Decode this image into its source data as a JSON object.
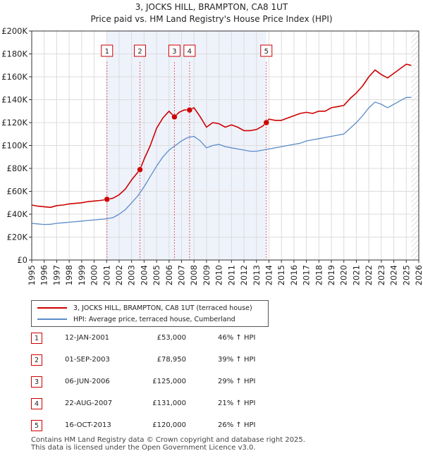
{
  "chart_data": {
    "type": "line",
    "title": "3, JOCKS HILL, BRAMPTON, CA8 1UT",
    "subtitle": "Price paid vs. HM Land Registry's House Price Index (HPI)",
    "xlim": [
      1995,
      2026
    ],
    "ylim": [
      0,
      200000
    ],
    "y_ticks": [
      0,
      20000,
      40000,
      60000,
      80000,
      100000,
      120000,
      140000,
      160000,
      180000,
      200000
    ],
    "y_tick_labels": [
      "£0",
      "£20K",
      "£40K",
      "£60K",
      "£80K",
      "£100K",
      "£120K",
      "£140K",
      "£160K",
      "£180K",
      "£200K"
    ],
    "x_ticks": [
      1995,
      1996,
      1997,
      1998,
      1999,
      2000,
      2001,
      2002,
      2003,
      2004,
      2005,
      2006,
      2007,
      2008,
      2009,
      2010,
      2011,
      2012,
      2013,
      2014,
      2015,
      2016,
      2017,
      2018,
      2019,
      2020,
      2021,
      2022,
      2023,
      2024,
      2025,
      2026
    ],
    "x_tick_labels": [
      "1995",
      "1996",
      "1997",
      "1998",
      "1999",
      "2000",
      "2001",
      "2002",
      "2003",
      "2004",
      "2005",
      "2006",
      "2007",
      "2008",
      "2009",
      "2010",
      "2011",
      "2012",
      "2013",
      "2014",
      "2015",
      "2016",
      "2017",
      "2018",
      "2019",
      "2020",
      "2021",
      "2022",
      "2023",
      "2024",
      "2025",
      "2026"
    ],
    "shaded_region": [
      2001.03,
      2013.79
    ],
    "hatched_from": 2025.4,
    "series": [
      {
        "name": "3, JOCKS HILL, BRAMPTON, CA8 1UT (terraced house)",
        "color": "#cc0000",
        "x": [
          1995.0,
          1995.5,
          1996.0,
          1996.5,
          1997.0,
          1997.5,
          1998.0,
          1998.5,
          1999.0,
          1999.5,
          2000.0,
          2000.5,
          2001.03,
          2001.5,
          2002.0,
          2002.5,
          2003.0,
          2003.67,
          2004.0,
          2004.5,
          2005.0,
          2005.5,
          2006.0,
          2006.43,
          2006.8,
          2007.2,
          2007.64,
          2008.0,
          2008.5,
          2009.0,
          2009.5,
          2010.0,
          2010.5,
          2011.0,
          2011.5,
          2012.0,
          2012.5,
          2013.0,
          2013.5,
          2013.79,
          2014.0,
          2014.5,
          2015.0,
          2015.5,
          2016.0,
          2016.5,
          2017.0,
          2017.5,
          2018.0,
          2018.5,
          2019.0,
          2019.5,
          2020.0,
          2020.5,
          2021.0,
          2021.5,
          2022.0,
          2022.5,
          2023.0,
          2023.5,
          2024.0,
          2024.5,
          2025.0,
          2025.4
        ],
        "values": [
          48000,
          47000,
          46500,
          46000,
          47500,
          48000,
          49000,
          49500,
          50000,
          51000,
          51500,
          52000,
          53000,
          54000,
          57000,
          62000,
          70000,
          78950,
          88000,
          100000,
          115000,
          124000,
          130000,
          125000,
          129000,
          131000,
          131000,
          133000,
          125000,
          116000,
          120000,
          119000,
          116000,
          118000,
          116000,
          113000,
          113000,
          114000,
          117000,
          120000,
          123000,
          122000,
          122000,
          124000,
          126000,
          128000,
          129000,
          128000,
          130000,
          130000,
          133000,
          134000,
          135000,
          141000,
          146000,
          152000,
          160000,
          166000,
          162000,
          159000,
          163000,
          167000,
          171000,
          170000
        ]
      },
      {
        "name": "HPI: Average price, terraced house, Cumberland",
        "color": "#5b8cc8",
        "x": [
          1995.0,
          1995.5,
          1996.0,
          1996.5,
          1997.0,
          1997.5,
          1998.0,
          1998.5,
          1999.0,
          1999.5,
          2000.0,
          2000.5,
          2001.0,
          2001.5,
          2002.0,
          2002.5,
          2003.0,
          2003.5,
          2004.0,
          2004.5,
          2005.0,
          2005.5,
          2006.0,
          2006.5,
          2007.0,
          2007.5,
          2008.0,
          2008.5,
          2009.0,
          2009.5,
          2010.0,
          2010.5,
          2011.0,
          2011.5,
          2012.0,
          2012.5,
          2013.0,
          2013.5,
          2014.0,
          2014.5,
          2015.0,
          2015.5,
          2016.0,
          2016.5,
          2017.0,
          2017.5,
          2018.0,
          2018.5,
          2019.0,
          2019.5,
          2020.0,
          2020.5,
          2021.0,
          2021.5,
          2022.0,
          2022.5,
          2023.0,
          2023.5,
          2024.0,
          2024.5,
          2025.0,
          2025.4
        ],
        "values": [
          32000,
          31500,
          31000,
          31200,
          32000,
          32500,
          33000,
          33500,
          34000,
          34500,
          35000,
          35500,
          36000,
          37000,
          40000,
          44000,
          50000,
          56000,
          64000,
          73000,
          82000,
          90000,
          96000,
          100000,
          104000,
          107000,
          108000,
          104000,
          98000,
          100000,
          101000,
          99000,
          98000,
          97000,
          96000,
          95000,
          95000,
          96000,
          97000,
          98000,
          99000,
          100000,
          101000,
          102000,
          104000,
          105000,
          106000,
          107000,
          108000,
          109000,
          110000,
          115000,
          120000,
          126000,
          133000,
          138000,
          136000,
          133000,
          136000,
          139000,
          142000,
          142000
        ]
      }
    ],
    "transactions": [
      {
        "n": "1",
        "date": "12-JAN-2001",
        "x": 2001.03,
        "price": "£53,000",
        "value": 53000,
        "hpi": "46% ↑ HPI"
      },
      {
        "n": "2",
        "date": "01-SEP-2003",
        "x": 2003.67,
        "price": "£78,950",
        "value": 78950,
        "hpi": "39% ↑ HPI"
      },
      {
        "n": "3",
        "date": "06-JUN-2006",
        "x": 2006.43,
        "price": "£125,000",
        "value": 125000,
        "hpi": "29% ↑ HPI"
      },
      {
        "n": "4",
        "date": "22-AUG-2007",
        "x": 2007.64,
        "price": "£131,000",
        "value": 131000,
        "hpi": "21% ↑ HPI"
      },
      {
        "n": "5",
        "date": "16-OCT-2013",
        "x": 2013.79,
        "price": "£120,000",
        "value": 120000,
        "hpi": "26% ↑ HPI"
      }
    ]
  },
  "legend": {
    "property_label": "3, JOCKS HILL, BRAMPTON, CA8 1UT (terraced house)",
    "hpi_label": "HPI: Average price, terraced house, Cumberland",
    "property_color": "#cc0000",
    "hpi_color": "#5b8cc8"
  },
  "footer": {
    "line1": "Contains HM Land Registry data © Crown copyright and database right 2025.",
    "line2": "This data is licensed under the Open Government Licence v3.0."
  }
}
